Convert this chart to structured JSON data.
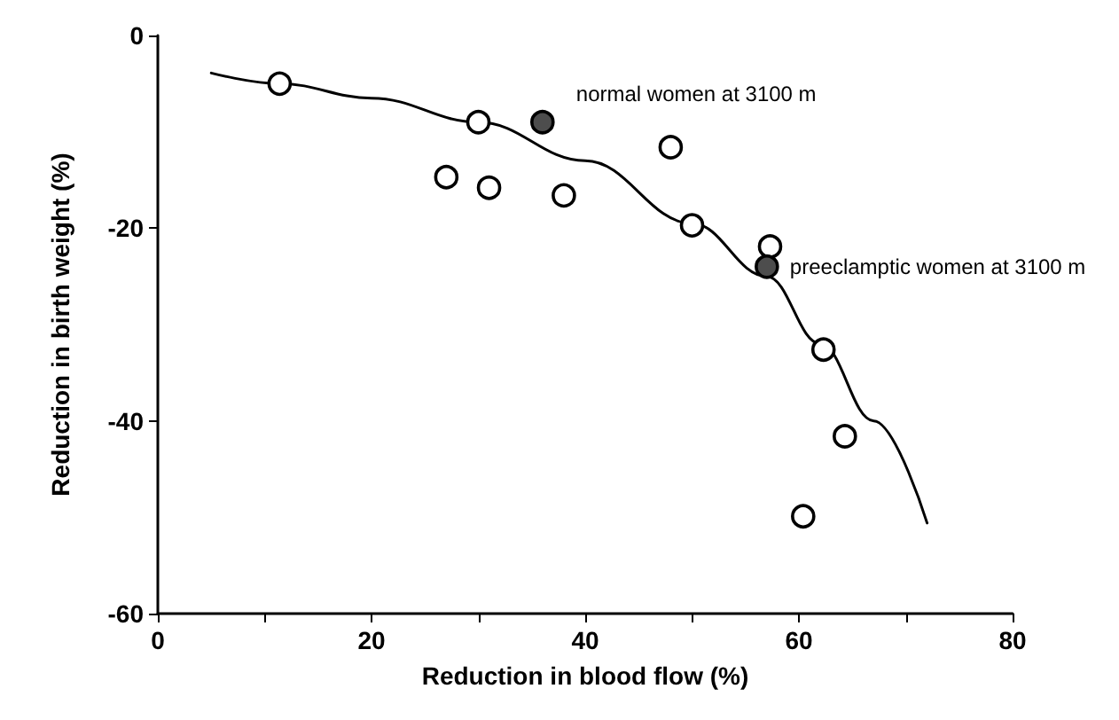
{
  "chart_data": {
    "type": "scatter",
    "xlabel": "Reduction in blood flow (%)",
    "ylabel": "Reduction in birth weight (%)",
    "xlim": [
      0,
      80
    ],
    "xticks": [
      0,
      {
        "value": 10,
        "label": null
      },
      20,
      {
        "value": 30,
        "label": null
      },
      40,
      {
        "value": 50,
        "label": null
      },
      60,
      {
        "value": 70,
        "label": null
      },
      80
    ],
    "ylim": [
      -60,
      0
    ],
    "yticks": [
      -60,
      -40,
      -20,
      0
    ],
    "grid": false,
    "marker": "circle",
    "series": [
      {
        "type": "line",
        "color": "#000000",
        "marker": "none",
        "line_style": "solid",
        "x": [
          5,
          11.4,
          20,
          30,
          40,
          50,
          57,
          62,
          67,
          72
        ],
        "values": [
          -3.9,
          -5,
          -6.5,
          -9,
          -13,
          -19.5,
          -25,
          -32,
          -40,
          -50.6
        ]
      },
      {
        "color": "#ffffff",
        "x": [
          11.4,
          30,
          27,
          31,
          38,
          48,
          50,
          57.3,
          62.3,
          64.3,
          60.4
        ],
        "values": [
          -5,
          -9,
          -14.7,
          -15.8,
          -16.6,
          -11.6,
          -19.7,
          -21.9,
          -32.6,
          -41.6,
          -49.9
        ]
      },
      {
        "color": "#4d4d4d",
        "x": [
          36,
          57
        ],
        "values": [
          -9,
          -24
        ]
      }
    ],
    "annotations": [
      {
        "text": "normal women at 3100 m",
        "x": 36,
        "y": -9
      },
      {
        "text": "preeclamptic women at 3100 m",
        "x": 57,
        "y": -24
      }
    ]
  }
}
